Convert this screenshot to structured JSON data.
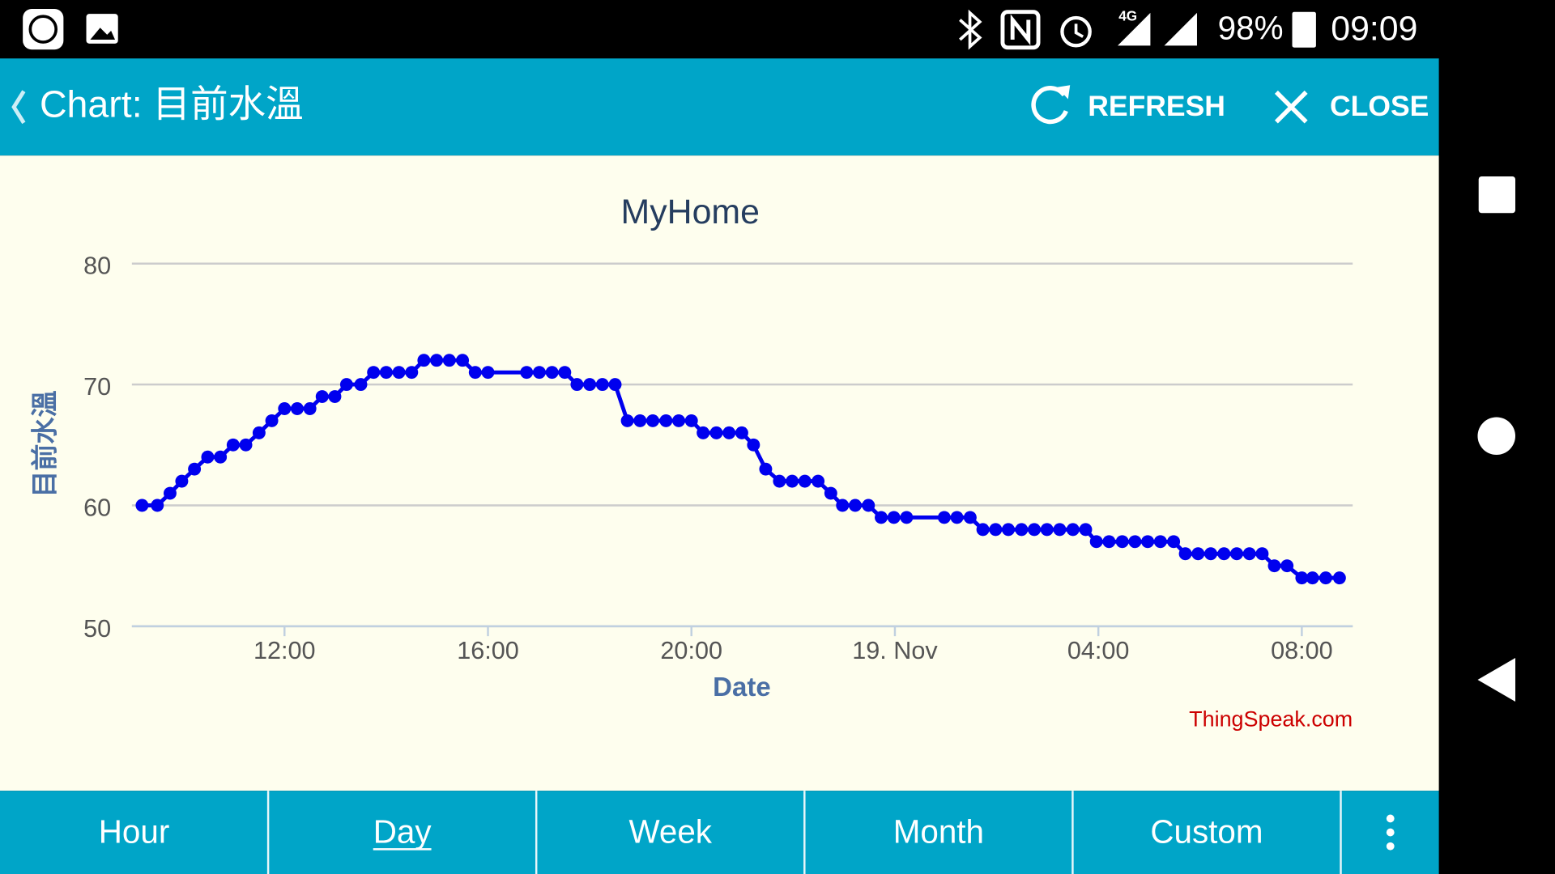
{
  "status_bar": {
    "network": "4G",
    "battery": "98%",
    "time": "09:09"
  },
  "app_bar": {
    "title": "Chart: 目前水溫",
    "refresh": "REFRESH",
    "close": "CLOSE"
  },
  "chart_data": {
    "type": "line",
    "title": "MyHome",
    "x_label": "Date",
    "y_label": "目前水溫",
    "credit": "ThingSpeak.com",
    "x": [
      9.2,
      9.5,
      9.75,
      9.98,
      10.23,
      10.49,
      10.74,
      10.99,
      11.24,
      11.5,
      11.75,
      12,
      12.25,
      12.5,
      12.74,
      12.99,
      13.22,
      13.5,
      13.75,
      14,
      14.25,
      14.5,
      14.74,
      14.99,
      15.24,
      15.5,
      15.75,
      16,
      16.76,
      17.01,
      17.26,
      17.51,
      17.75,
      18,
      18.25,
      18.5,
      18.74,
      18.99,
      19.24,
      19.5,
      19.75,
      20,
      20.23,
      20.49,
      20.74,
      20.99,
      21.22,
      21.46,
      21.73,
      21.98,
      22.23,
      22.49,
      22.74,
      22.97,
      23.22,
      23.48,
      23.73,
      23.98,
      24.23,
      24.97,
      25.22,
      25.48,
      25.73,
      25.98,
      26.23,
      26.49,
      26.74,
      26.99,
      27.24,
      27.5,
      27.75,
      27.96,
      28.21,
      28.47,
      28.72,
      28.97,
      29.22,
      29.48,
      29.71,
      29.96,
      30.21,
      30.47,
      30.72,
      30.97,
      31.22,
      31.46,
      31.71,
      32,
      32.21,
      32.47,
      32.74
    ],
    "series": [
      {
        "color": "#0000ee",
        "values": [
          60,
          60,
          61,
          62,
          63,
          64,
          64,
          65,
          65,
          66,
          67,
          68,
          68,
          68,
          69,
          69,
          70,
          70,
          71,
          71,
          71,
          71,
          72,
          72,
          72,
          72,
          71,
          71,
          71,
          71,
          71,
          71,
          70,
          70,
          70,
          70,
          67,
          67,
          67,
          67,
          67,
          67,
          66,
          66,
          66,
          66,
          65,
          63,
          62,
          62,
          62,
          62,
          61,
          60,
          60,
          60,
          59,
          59,
          59,
          59,
          59,
          59,
          58,
          58,
          58,
          58,
          58,
          58,
          58,
          58,
          58,
          57,
          57,
          57,
          57,
          57,
          57,
          57,
          56,
          56,
          56,
          56,
          56,
          56,
          56,
          55,
          55,
          54,
          54,
          54,
          54
        ]
      }
    ],
    "xlim": [
      9,
      33
    ],
    "xticks": [
      {
        "value": 12,
        "label": "12:00"
      },
      {
        "value": 16,
        "label": "16:00"
      },
      {
        "value": 20,
        "label": "20:00"
      },
      {
        "value": 24,
        "label": "19. Nov"
      },
      {
        "value": 28,
        "label": "04:00"
      },
      {
        "value": 32,
        "label": "08:00"
      }
    ],
    "ylim": [
      50,
      80
    ],
    "yticks": [
      50,
      60,
      70,
      80
    ],
    "grid": true,
    "markers": true
  },
  "tabs": [
    "Hour",
    "Day",
    "Week",
    "Month",
    "Custom"
  ],
  "selected_tab": 1
}
